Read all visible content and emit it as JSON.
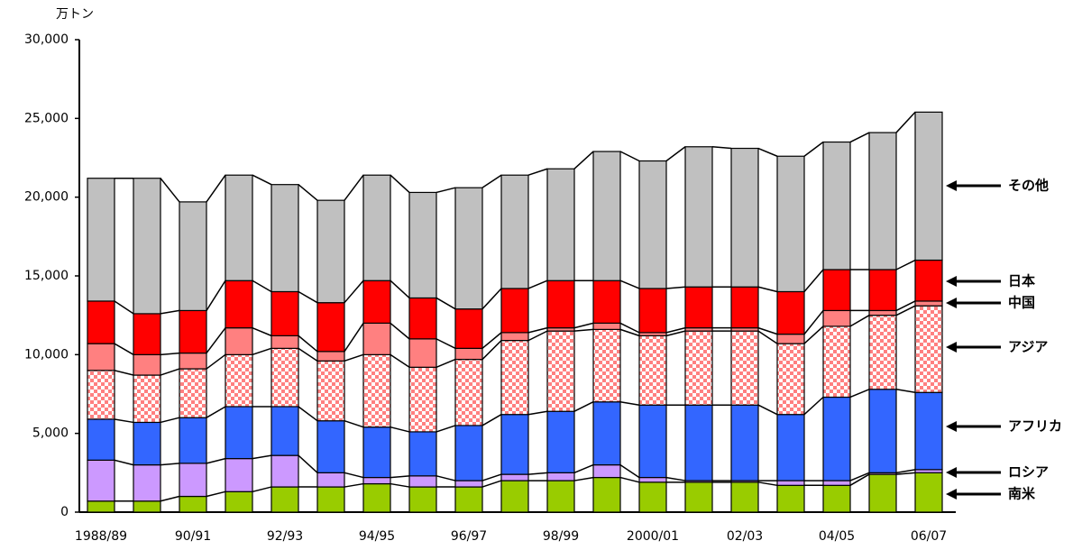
{
  "chart_data": {
    "type": "stacked_bar",
    "ylabel": "万トン",
    "categories": [
      "1988/89",
      null,
      "90/91",
      null,
      "92/93",
      null,
      "94/95",
      null,
      "96/97",
      null,
      "98/99",
      null,
      "2000/01",
      null,
      "02/03",
      null,
      "04/05",
      null,
      "06/07"
    ],
    "series": [
      {
        "name": "南米",
        "color": "#99cc00",
        "values": [
          700,
          700,
          1000,
          1300,
          1600,
          1600,
          1800,
          1600,
          1600,
          2000,
          2000,
          2200,
          1900,
          1900,
          1900,
          1700,
          1700,
          2400,
          2500
        ]
      },
      {
        "name": "ロシア",
        "color": "#cc99ff",
        "values": [
          2600,
          2300,
          2100,
          2100,
          2000,
          900,
          400,
          700,
          400,
          400,
          500,
          800,
          300,
          100,
          100,
          300,
          300,
          100,
          200
        ]
      },
      {
        "name": "アフリカ",
        "color": "#3366ff",
        "values": [
          2600,
          2700,
          2900,
          3300,
          3100,
          3300,
          3200,
          2800,
          3500,
          3800,
          3900,
          4000,
          4600,
          4800,
          4800,
          4200,
          5300,
          5300,
          4900
        ]
      },
      {
        "name": "アジア",
        "color": "#ff8080",
        "pattern": "checker",
        "values": [
          3100,
          3000,
          3100,
          3300,
          3700,
          3800,
          4600,
          4100,
          4200,
          4700,
          5100,
          4600,
          4400,
          4700,
          4700,
          4500,
          4500,
          4700,
          5500
        ]
      },
      {
        "name": "中国",
        "color": "#ff8080",
        "values": [
          1700,
          1300,
          1000,
          1700,
          800,
          600,
          2000,
          1800,
          700,
          500,
          200,
          400,
          200,
          200,
          200,
          600,
          1000,
          300,
          300
        ]
      },
      {
        "name": "日本",
        "color": "#ff0000",
        "values": [
          2700,
          2600,
          2700,
          3000,
          2800,
          3100,
          2700,
          2600,
          2500,
          2800,
          3000,
          2700,
          2800,
          2600,
          2600,
          2700,
          2600,
          2600,
          2600
        ]
      },
      {
        "name": "その他",
        "color": "#c0c0c0",
        "values": [
          7800,
          8600,
          6900,
          6700,
          6800,
          6500,
          6700,
          6700,
          7700,
          7200,
          7100,
          8200,
          8100,
          8900,
          8800,
          8600,
          8100,
          8700,
          9400
        ]
      }
    ],
    "ylim": [
      0,
      30000
    ],
    "yticks": [
      0,
      {
        "value": 5000,
        "label": "5,000"
      },
      {
        "value": 10000,
        "label": "10,000"
      },
      {
        "value": 15000,
        "label": "15,000"
      },
      {
        "value": 20000,
        "label": "20,000"
      },
      {
        "value": 25000,
        "label": "25,000"
      },
      {
        "value": 30000,
        "label": "30,000"
      }
    ]
  }
}
